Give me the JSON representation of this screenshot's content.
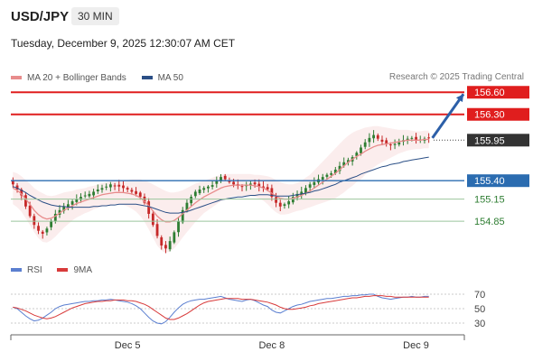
{
  "header": {
    "symbol": "USD/JPY",
    "timeframe": "30 MIN",
    "timestamp": "Tuesday, December 9, 2025 12:30:07 AM CET"
  },
  "legend": {
    "items": [
      {
        "label": "MA 20 + Bollinger Bands",
        "color": "#e88c8c"
      },
      {
        "label": "MA 50",
        "color": "#2b4f86"
      }
    ]
  },
  "credit": "Research © 2025 Trading Central",
  "rsi_legend": {
    "items": [
      {
        "label": "RSI",
        "color": "#5b7fd0"
      },
      {
        "label": "9MA",
        "color": "#d83a3a"
      }
    ]
  },
  "colors": {
    "resistance": "#e01e1e",
    "support_strong": "#2b6cb0",
    "support": "#2e7d32",
    "bull": "#2e7d32",
    "bear": "#c62828",
    "ma20": "#e88c8c",
    "ma50": "#2b4f86",
    "arrow": "#2c5fa8",
    "price_badge": "#333333"
  },
  "chart_data": [
    {
      "type": "candlestick",
      "title": "USD/JPY",
      "x_tick_labels": [
        "Dec 5",
        "Dec 8",
        "Dec 9"
      ],
      "x_tick_index": [
        27,
        61,
        95
      ],
      "ylim": [
        154.3,
        156.75
      ],
      "grid": false,
      "levels": [
        {
          "value": 156.6,
          "label": "156.60",
          "kind": "resistance"
        },
        {
          "value": 156.3,
          "label": "156.30",
          "kind": "resistance"
        },
        {
          "value": 155.95,
          "label": "155.95",
          "kind": "last"
        },
        {
          "value": 155.4,
          "label": "155.40",
          "kind": "pivot"
        },
        {
          "value": 155.15,
          "label": "155.15",
          "kind": "support"
        },
        {
          "value": 154.85,
          "label": "154.85",
          "kind": "support"
        }
      ],
      "close": [
        155.35,
        155.28,
        155.2,
        155.05,
        154.92,
        154.8,
        154.72,
        154.68,
        154.75,
        154.85,
        154.95,
        155.0,
        155.05,
        155.08,
        155.12,
        155.15,
        155.18,
        155.2,
        155.22,
        155.25,
        155.28,
        155.3,
        155.32,
        155.35,
        155.33,
        155.32,
        155.3,
        155.28,
        155.25,
        155.22,
        155.18,
        155.1,
        154.95,
        154.8,
        154.65,
        154.52,
        154.48,
        154.58,
        154.7,
        154.85,
        155.0,
        155.1,
        155.18,
        155.25,
        155.28,
        155.3,
        155.32,
        155.34,
        155.4,
        155.45,
        155.42,
        155.38,
        155.35,
        155.33,
        155.32,
        155.34,
        155.36,
        155.35,
        155.32,
        155.3,
        155.28,
        155.18,
        155.1,
        155.05,
        155.08,
        155.12,
        155.18,
        155.22,
        155.25,
        155.3,
        155.35,
        155.38,
        155.42,
        155.45,
        155.48,
        155.5,
        155.55,
        155.6,
        155.65,
        155.68,
        155.72,
        155.78,
        155.85,
        155.92,
        155.98,
        156.02,
        155.97,
        155.93,
        155.9,
        155.88,
        155.9,
        155.92,
        155.95,
        155.97,
        155.98,
        155.95,
        155.96,
        155.97,
        155.98
      ],
      "ma20": [
        155.3,
        155.27,
        155.22,
        155.15,
        155.08,
        155.0,
        154.94,
        154.9,
        154.88,
        154.89,
        154.92,
        154.96,
        155.0,
        155.03,
        155.06,
        155.09,
        155.11,
        155.13,
        155.15,
        155.17,
        155.19,
        155.21,
        155.22,
        155.23,
        155.24,
        155.24,
        155.24,
        155.23,
        155.22,
        155.2,
        155.17,
        155.12,
        155.06,
        154.99,
        154.92,
        154.87,
        154.84,
        154.84,
        154.86,
        154.9,
        154.95,
        155.0,
        155.05,
        155.1,
        155.14,
        155.18,
        155.21,
        155.24,
        155.27,
        155.3,
        155.32,
        155.33,
        155.34,
        155.34,
        155.34,
        155.34,
        155.34,
        155.33,
        155.32,
        155.3,
        155.27,
        155.23,
        155.19,
        155.16,
        155.15,
        155.15,
        155.16,
        155.18,
        155.2,
        155.23,
        155.26,
        155.3,
        155.34,
        155.38,
        155.42,
        155.46,
        155.5,
        155.55,
        155.6,
        155.65,
        155.69,
        155.73,
        155.76,
        155.8,
        155.83,
        155.86,
        155.88,
        155.89,
        155.9,
        155.91,
        155.92,
        155.93,
        155.94,
        155.95,
        155.95,
        155.95,
        155.95,
        155.96,
        155.96
      ],
      "bb_width": [
        0.22,
        0.23,
        0.24,
        0.26,
        0.28,
        0.3,
        0.32,
        0.33,
        0.32,
        0.3,
        0.28,
        0.26,
        0.24,
        0.22,
        0.2,
        0.19,
        0.18,
        0.17,
        0.17,
        0.16,
        0.16,
        0.16,
        0.16,
        0.16,
        0.16,
        0.16,
        0.17,
        0.18,
        0.2,
        0.22,
        0.25,
        0.28,
        0.32,
        0.36,
        0.4,
        0.42,
        0.42,
        0.4,
        0.38,
        0.35,
        0.32,
        0.3,
        0.28,
        0.26,
        0.24,
        0.22,
        0.21,
        0.2,
        0.19,
        0.18,
        0.17,
        0.16,
        0.15,
        0.15,
        0.15,
        0.15,
        0.15,
        0.15,
        0.16,
        0.17,
        0.19,
        0.21,
        0.22,
        0.22,
        0.21,
        0.2,
        0.19,
        0.19,
        0.2,
        0.21,
        0.22,
        0.24,
        0.26,
        0.28,
        0.3,
        0.32,
        0.34,
        0.35,
        0.36,
        0.36,
        0.36,
        0.35,
        0.34,
        0.32,
        0.3,
        0.28,
        0.26,
        0.24,
        0.22,
        0.2,
        0.18,
        0.16,
        0.15,
        0.14,
        0.13,
        0.12,
        0.12,
        0.12,
        0.12
      ],
      "ma50": [
        155.32,
        155.3,
        155.27,
        155.24,
        155.2,
        155.17,
        155.14,
        155.11,
        155.09,
        155.07,
        155.06,
        155.05,
        155.05,
        155.04,
        155.04,
        155.04,
        155.04,
        155.04,
        155.04,
        155.05,
        155.05,
        155.06,
        155.06,
        155.07,
        155.07,
        155.08,
        155.08,
        155.08,
        155.08,
        155.08,
        155.07,
        155.06,
        155.05,
        155.03,
        155.01,
        154.99,
        154.97,
        154.96,
        154.96,
        154.96,
        154.97,
        154.98,
        155.0,
        155.02,
        155.04,
        155.06,
        155.08,
        155.1,
        155.12,
        155.14,
        155.15,
        155.16,
        155.17,
        155.18,
        155.18,
        155.19,
        155.2,
        155.2,
        155.21,
        155.21,
        155.21,
        155.2,
        155.19,
        155.19,
        155.19,
        155.19,
        155.2,
        155.21,
        155.22,
        155.23,
        155.24,
        155.26,
        155.27,
        155.29,
        155.31,
        155.33,
        155.35,
        155.38,
        155.4,
        155.42,
        155.44,
        155.46,
        155.49,
        155.51,
        155.53,
        155.55,
        155.57,
        155.59,
        155.6,
        155.62,
        155.63,
        155.64,
        155.66,
        155.67,
        155.68,
        155.69,
        155.7,
        155.71,
        155.72
      ]
    },
    {
      "type": "line",
      "title": "RSI",
      "ylim": [
        20,
        80
      ],
      "y_ticks": [
        70,
        50,
        30
      ],
      "series": [
        {
          "name": "RSI",
          "values": [
            52,
            50,
            45,
            40,
            36,
            33,
            34,
            37,
            41,
            45,
            50,
            53,
            55,
            56,
            57,
            58,
            59,
            60,
            60,
            61,
            61,
            62,
            62,
            63,
            62,
            61,
            60,
            59,
            57,
            54,
            50,
            44,
            38,
            33,
            30,
            29,
            32,
            38,
            45,
            51,
            56,
            59,
            61,
            62,
            63,
            63,
            64,
            65,
            66,
            67,
            65,
            63,
            62,
            61,
            60,
            62,
            63,
            61,
            58,
            55,
            53,
            48,
            45,
            44,
            47,
            50,
            53,
            55,
            56,
            58,
            60,
            61,
            62,
            63,
            64,
            64,
            65,
            66,
            67,
            67,
            68,
            68,
            69,
            69,
            70,
            70,
            67,
            65,
            64,
            63,
            64,
            65,
            66,
            66,
            67,
            66,
            66,
            67,
            67
          ]
        },
        {
          "name": "9MA",
          "values": [
            52,
            51,
            49,
            47,
            44,
            41,
            39,
            37,
            36,
            37,
            39,
            42,
            45,
            48,
            51,
            53,
            55,
            57,
            58,
            59,
            60,
            60,
            61,
            61,
            62,
            62,
            62,
            61,
            61,
            60,
            58,
            56,
            53,
            49,
            45,
            41,
            37,
            35,
            35,
            37,
            40,
            43,
            47,
            51,
            55,
            58,
            60,
            61,
            62,
            63,
            64,
            64,
            64,
            64,
            63,
            63,
            63,
            62,
            61,
            60,
            59,
            57,
            55,
            52,
            50,
            49,
            49,
            50,
            51,
            52,
            54,
            55,
            57,
            58,
            59,
            60,
            61,
            62,
            63,
            64,
            65,
            65,
            66,
            67,
            67,
            68,
            68,
            68,
            67,
            67,
            66,
            66,
            66,
            66,
            66,
            66,
            66,
            66,
            66
          ]
        }
      ]
    }
  ]
}
